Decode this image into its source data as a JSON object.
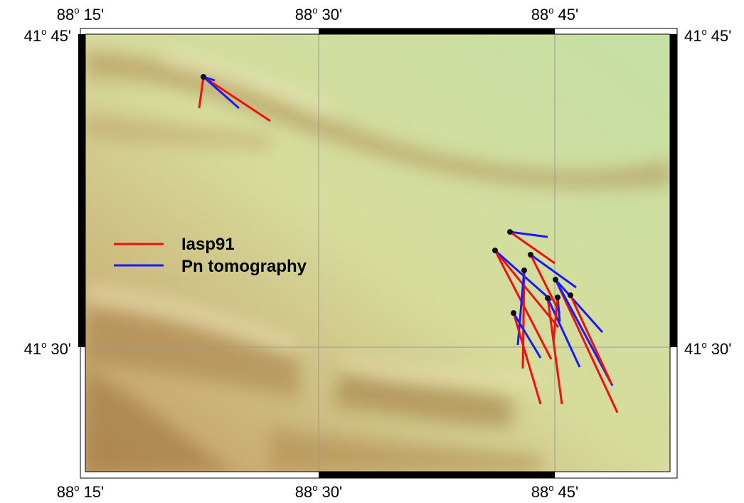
{
  "map": {
    "degree_symbol": "o",
    "top_labels": [
      {
        "degrees": "88",
        "minutes": "15'"
      },
      {
        "degrees": "88",
        "minutes": "30'"
      },
      {
        "degrees": "88",
        "minutes": "45'"
      }
    ],
    "bottom_labels": [
      {
        "degrees": "88",
        "minutes": "15'"
      },
      {
        "degrees": "88",
        "minutes": "30'"
      },
      {
        "degrees": "88",
        "minutes": "45'"
      }
    ],
    "left_labels": [
      {
        "degrees": "41",
        "minutes": "45'"
      },
      {
        "degrees": "41",
        "minutes": "30'"
      }
    ],
    "right_labels": [
      {
        "degrees": "41",
        "minutes": "45'"
      },
      {
        "degrees": "41",
        "minutes": "30'"
      }
    ],
    "legend": [
      {
        "label": "Iasp91"
      },
      {
        "label": "Pn tomography"
      }
    ]
  }
}
